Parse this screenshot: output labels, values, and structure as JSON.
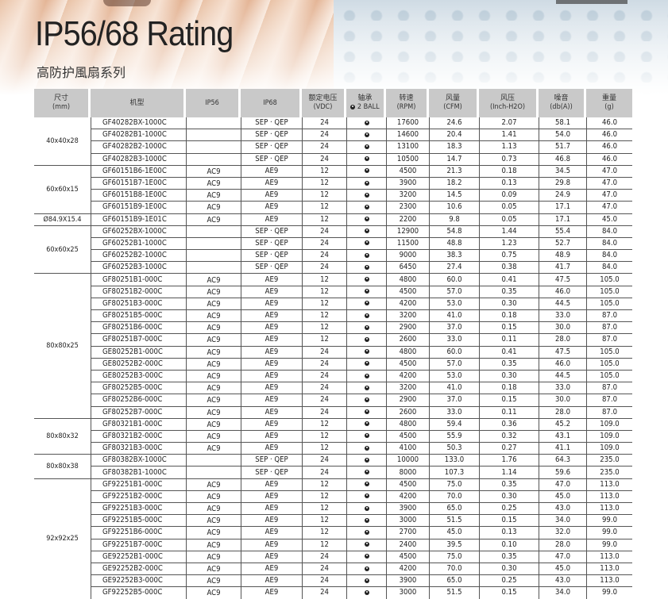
{
  "title": "IP56/68 Rating",
  "subtitle": "高防护風扇系列",
  "table": {
    "headers": [
      [
        "尺寸",
        "(mm)"
      ],
      [
        "机型",
        ""
      ],
      [
        "IP56",
        ""
      ],
      [
        "IP68",
        ""
      ],
      [
        "额定电压",
        "(VDC)"
      ],
      [
        "轴承",
        "2 BALL"
      ],
      [
        "转速",
        "(RPM)"
      ],
      [
        "风量",
        "(CFM)"
      ],
      [
        "风压",
        "(Inch-H2O)"
      ],
      [
        "噪音",
        "(db(A))"
      ],
      [
        "重量",
        "(g)"
      ]
    ],
    "bearing_icon": "ball-bearing-icon",
    "groups": [
      {
        "size": "40x40x28",
        "rows": [
          [
            "GF40282BX-1000C",
            "",
            "SEP · QEP",
            "24",
            "17600",
            "24.6",
            "2.07",
            "58.1",
            "46.0"
          ],
          [
            "GF40282B1-1000C",
            "",
            "SEP · QEP",
            "24",
            "14600",
            "20.4",
            "1.41",
            "54.0",
            "46.0"
          ],
          [
            "GF40282B2-1000C",
            "",
            "SEP · QEP",
            "24",
            "13100",
            "18.3",
            "1.13",
            "51.7",
            "46.0"
          ],
          [
            "GF40282B3-1000C",
            "",
            "SEP · QEP",
            "24",
            "10500",
            "14.7",
            "0.73",
            "46.8",
            "46.0"
          ]
        ]
      },
      {
        "size": "60x60x15",
        "rows": [
          [
            "GF60151B6-1E00C",
            "AC9",
            "AE9",
            "12",
            "4500",
            "21.3",
            "0.18",
            "34.5",
            "47.0"
          ],
          [
            "GF60151B7-1E00C",
            "AC9",
            "AE9",
            "12",
            "3900",
            "18.2",
            "0.13",
            "29.8",
            "47.0"
          ],
          [
            "GF60151B8-1E00C",
            "AC9",
            "AE9",
            "12",
            "3200",
            "14.5",
            "0.09",
            "24.9",
            "47.0"
          ],
          [
            "GF60151B9-1E00C",
            "AC9",
            "AE9",
            "12",
            "2300",
            "10.6",
            "0.05",
            "17.1",
            "47.0"
          ]
        ]
      },
      {
        "size": "Ø84.9X15.4",
        "rows": [
          [
            "GF60151B9-1E01C",
            "AC9",
            "AE9",
            "12",
            "2200",
            "9.8",
            "0.05",
            "17.1",
            "45.0"
          ]
        ]
      },
      {
        "size": "60x60x25",
        "rows": [
          [
            "GF60252BX-1000C",
            "",
            "SEP · QEP",
            "24",
            "12900",
            "54.8",
            "1.44",
            "55.4",
            "84.0"
          ],
          [
            "GF60252B1-1000C",
            "",
            "SEP · QEP",
            "24",
            "11500",
            "48.8",
            "1.23",
            "52.7",
            "84.0"
          ],
          [
            "GF60252B2-1000C",
            "",
            "SEP · QEP",
            "24",
            "9000",
            "38.3",
            "0.75",
            "48.9",
            "84.0"
          ],
          [
            "GF60252B3-1000C",
            "",
            "SEP · QEP",
            "24",
            "6450",
            "27.4",
            "0.38",
            "41.7",
            "84.0"
          ]
        ]
      },
      {
        "size": "80x80x25",
        "rows": [
          [
            "GF80251B1-000C",
            "AC9",
            "AE9",
            "12",
            "4800",
            "60.0",
            "0.41",
            "47.5",
            "105.0"
          ],
          [
            "GF80251B2-000C",
            "AC9",
            "AE9",
            "12",
            "4500",
            "57.0",
            "0.35",
            "46.0",
            "105.0"
          ],
          [
            "GF80251B3-000C",
            "AC9",
            "AE9",
            "12",
            "4200",
            "53.0",
            "0.30",
            "44.5",
            "105.0"
          ],
          [
            "GF80251B5-000C",
            "AC9",
            "AE9",
            "12",
            "3200",
            "41.0",
            "0.18",
            "33.0",
            "87.0"
          ],
          [
            "GF80251B6-000C",
            "AC9",
            "AE9",
            "12",
            "2900",
            "37.0",
            "0.15",
            "30.0",
            "87.0"
          ],
          [
            "GF80251B7-000C",
            "AC9",
            "AE9",
            "12",
            "2600",
            "33.0",
            "0.11",
            "28.0",
            "87.0"
          ],
          [
            "GE80252B1-000C",
            "AC9",
            "AE9",
            "24",
            "4800",
            "60.0",
            "0.41",
            "47.5",
            "105.0"
          ],
          [
            "GE80252B2-000C",
            "AC9",
            "AE9",
            "24",
            "4500",
            "57.0",
            "0.35",
            "46.0",
            "105.0"
          ],
          [
            "GE80252B3-000C",
            "AC9",
            "AE9",
            "24",
            "4200",
            "53.0",
            "0.30",
            "44.5",
            "105.0"
          ],
          [
            "GF80252B5-000C",
            "AC9",
            "AE9",
            "24",
            "3200",
            "41.0",
            "0.18",
            "33.0",
            "87.0"
          ],
          [
            "GF80252B6-000C",
            "AC9",
            "AE9",
            "24",
            "2900",
            "37.0",
            "0.15",
            "30.0",
            "87.0"
          ],
          [
            "GF80252B7-000C",
            "AC9",
            "AE9",
            "24",
            "2600",
            "33.0",
            "0.11",
            "28.0",
            "87.0"
          ]
        ]
      },
      {
        "size": "80x80x32",
        "rows": [
          [
            "GF80321B1-000C",
            "AC9",
            "AE9",
            "12",
            "4800",
            "59.4",
            "0.36",
            "45.2",
            "109.0"
          ],
          [
            "GF80321B2-000C",
            "AC9",
            "AE9",
            "12",
            "4500",
            "55.9",
            "0.32",
            "43.1",
            "109.0"
          ],
          [
            "GF80321B3-000C",
            "AC9",
            "AE9",
            "12",
            "4100",
            "50.3",
            "0.27",
            "41.1",
            "109.0"
          ]
        ]
      },
      {
        "size": "80x80x38",
        "rows": [
          [
            "GF80382BX-1000C",
            "",
            "SEP · QEP",
            "24",
            "10000",
            "133.0",
            "1.76",
            "64.3",
            "235.0"
          ],
          [
            "GF80382B1-1000C",
            "",
            "SEP · QEP",
            "24",
            "8000",
            "107.3",
            "1.14",
            "59.6",
            "235.0"
          ]
        ]
      },
      {
        "size": "92x92x25",
        "rows": [
          [
            "GF92251B1-000C",
            "AC9",
            "AE9",
            "12",
            "4500",
            "75.0",
            "0.35",
            "47.0",
            "113.0"
          ],
          [
            "GF92251B2-000C",
            "AC9",
            "AE9",
            "12",
            "4200",
            "70.0",
            "0.30",
            "45.0",
            "113.0"
          ],
          [
            "GF92251B3-000C",
            "AC9",
            "AE9",
            "12",
            "3900",
            "65.0",
            "0.25",
            "43.0",
            "113.0"
          ],
          [
            "GF92251B5-000C",
            "AC9",
            "AE9",
            "12",
            "3000",
            "51.5",
            "0.15",
            "34.0",
            "99.0"
          ],
          [
            "GF92251B6-000C",
            "AC9",
            "AE9",
            "12",
            "2700",
            "45.0",
            "0.13",
            "32.0",
            "99.0"
          ],
          [
            "GF92251B7-000C",
            "AC9",
            "AE9",
            "12",
            "2400",
            "39.5",
            "0.10",
            "28.0",
            "99.0"
          ],
          [
            "GE92252B1-000C",
            "AC9",
            "AE9",
            "24",
            "4500",
            "75.0",
            "0.35",
            "47.0",
            "113.0"
          ],
          [
            "GE92252B2-000C",
            "AC9",
            "AE9",
            "24",
            "4200",
            "70.0",
            "0.30",
            "45.0",
            "113.0"
          ],
          [
            "GE92252B3-000C",
            "AC9",
            "AE9",
            "24",
            "3900",
            "65.0",
            "0.25",
            "43.0",
            "113.0"
          ],
          [
            "GF92252B5-000C",
            "AC9",
            "AE9",
            "24",
            "3000",
            "51.5",
            "0.15",
            "34.0",
            "99.0"
          ]
        ]
      }
    ]
  }
}
